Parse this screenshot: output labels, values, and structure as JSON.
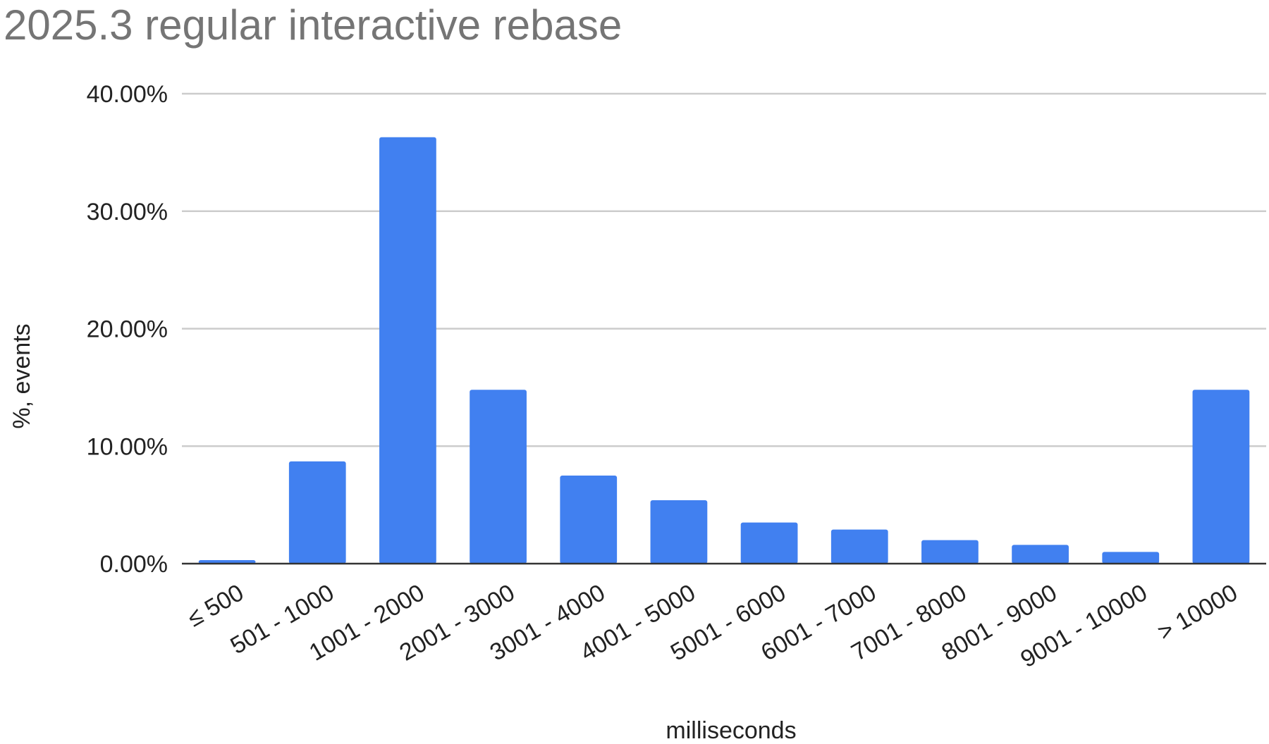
{
  "chart_data": {
    "type": "bar",
    "title": "2025.3 regular interactive rebase",
    "xlabel": "milliseconds",
    "ylabel": "%, events",
    "ylim": [
      0,
      40
    ],
    "yticks": [
      0,
      10,
      20,
      30,
      40
    ],
    "ytick_labels": [
      "0.00%",
      "10.00%",
      "20.00%",
      "30.00%",
      "40.00%"
    ],
    "grid": true,
    "legend": "none",
    "bar_color": "#4180f0",
    "categories": [
      "≤ 500",
      "501 - 1000",
      "1001 - 2000",
      "2001 - 3000",
      "3001 - 4000",
      "4001 - 5000",
      "5001 - 6000",
      "6001 - 7000",
      "7001 - 8000",
      "8001 - 9000",
      "9001 - 10000",
      "> 10000"
    ],
    "values": [
      0.3,
      8.7,
      36.3,
      14.8,
      7.5,
      5.4,
      3.5,
      2.9,
      2.0,
      1.6,
      1.0,
      14.8
    ]
  }
}
